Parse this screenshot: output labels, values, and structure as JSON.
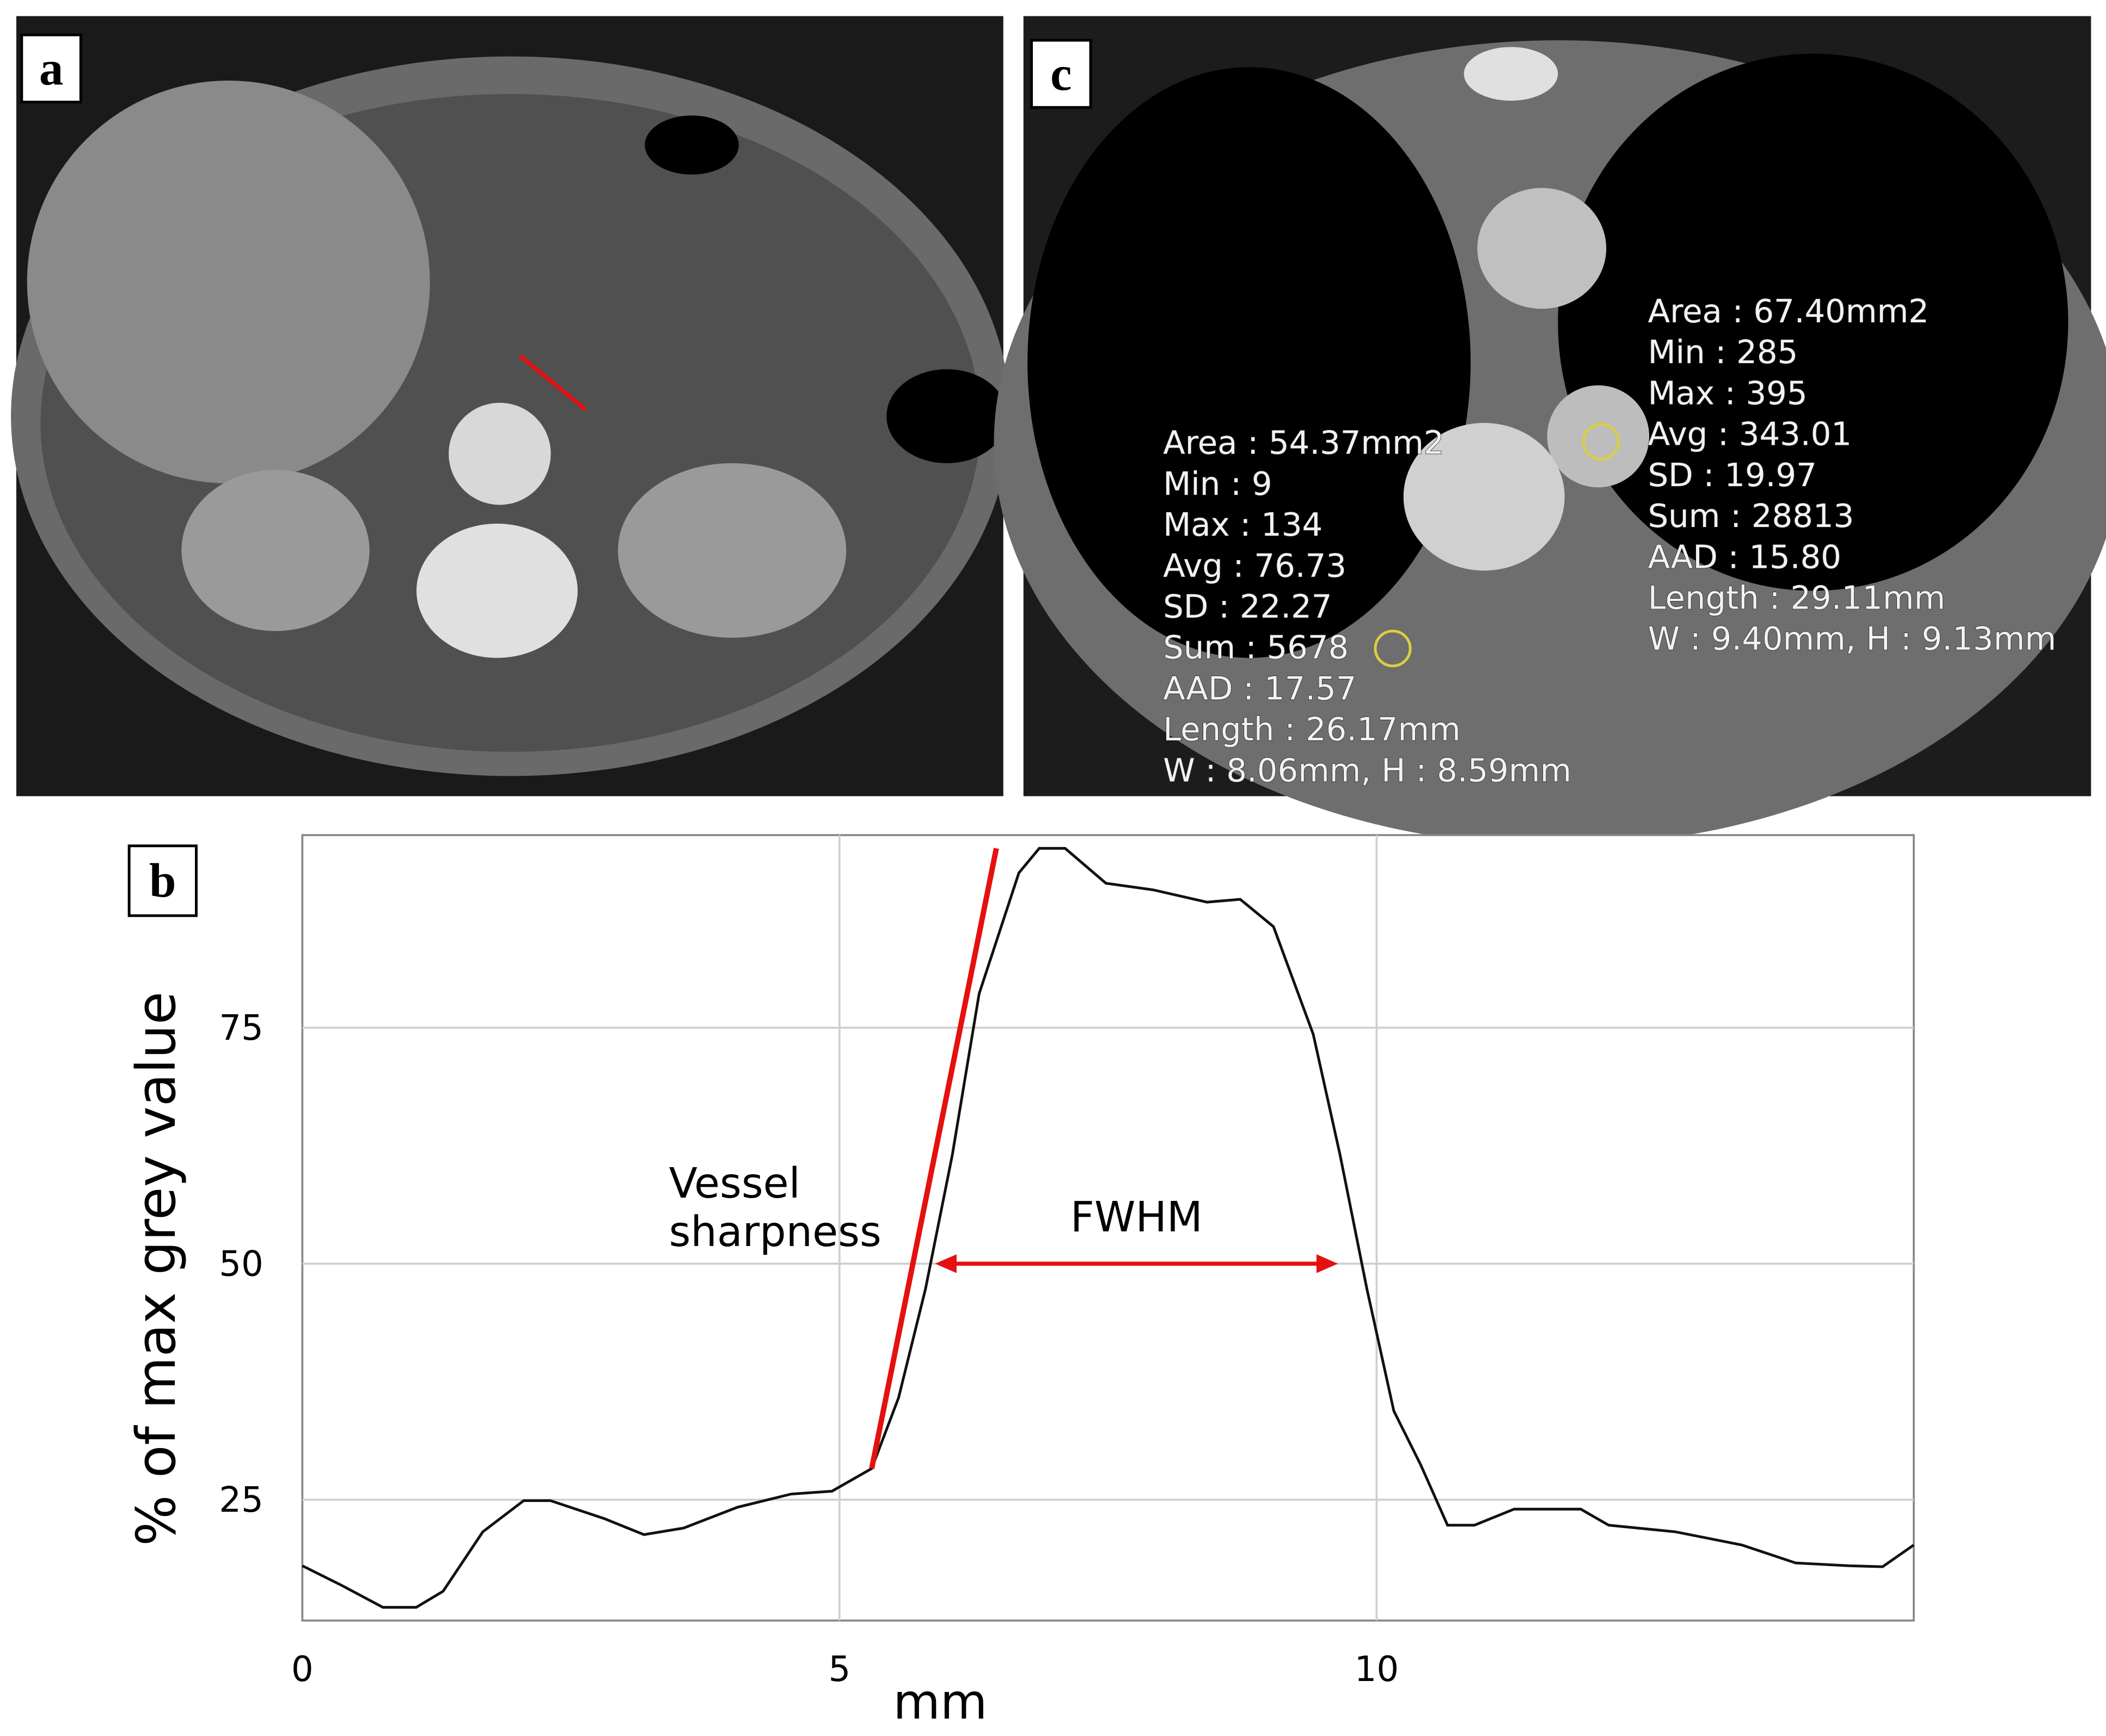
{
  "panels": {
    "a": {
      "label": "a"
    },
    "c": {
      "label": "c",
      "left_measurement": [
        "Area : 54.37mm2",
        "Min : 9",
        "Max : 134",
        "Avg : 76.73",
        "SD : 22.27",
        "Sum : 5678",
        "AAD : 17.57",
        "Length : 26.17mm",
        "W : 8.06mm, H : 8.59mm"
      ],
      "right_measurement": [
        "Area : 67.40mm2",
        "Min : 285",
        "Max : 395",
        "Avg : 343.01",
        "SD : 19.97",
        "Sum : 28813",
        "AAD : 15.80",
        "Length : 29.11mm",
        "W : 9.40mm, H : 9.13mm"
      ]
    }
  },
  "chart_data": {
    "type": "line",
    "panel_label": "b",
    "xlabel": "mm",
    "ylabel": "% of max grey value",
    "x": [
      0,
      0.37,
      0.75,
      1.06,
      1.31,
      1.68,
      2.06,
      2.31,
      2.81,
      3.18,
      3.55,
      4.05,
      4.55,
      4.93,
      5.3,
      5.55,
      5.8,
      6.05,
      6.3,
      6.67,
      6.86,
      7.1,
      7.48,
      7.92,
      8.42,
      8.73,
      9.04,
      9.41,
      9.66,
      9.91,
      10.16,
      10.41,
      10.66,
      10.91,
      11.28,
      11.9,
      12.16,
      12.78,
      13.4,
      13.9,
      14.4,
      14.71,
      15
    ],
    "values": [
      18.0,
      15.9,
      13.6,
      13.6,
      15.3,
      21.6,
      24.9,
      24.9,
      23.0,
      21.3,
      22.0,
      24.2,
      25.6,
      25.9,
      28.3,
      35.8,
      47.3,
      61.5,
      78.6,
      91.4,
      94.0,
      94.0,
      90.3,
      89.6,
      88.3,
      88.6,
      85.7,
      74.3,
      61.5,
      47.3,
      34.4,
      28.7,
      22.3,
      22.3,
      24.0,
      24.0,
      22.3,
      21.6,
      20.2,
      18.3,
      18.0,
      17.9,
      20.2
    ],
    "color": "#111111",
    "xlim": [
      0,
      15
    ],
    "ylim": [
      12.2,
      95.4
    ],
    "xticks": [
      0,
      5,
      10
    ],
    "yticks": [
      25,
      50,
      75
    ],
    "grid": true,
    "sharpness_line": {
      "label_lines": [
        "Vessel",
        "sharpness"
      ],
      "x": [
        5.3,
        6.46
      ],
      "y": [
        28.3,
        94.0
      ],
      "color": "#e51010"
    },
    "fwhm_arrow": {
      "label": "FWHM",
      "x": [
        5.89,
        9.64
      ],
      "y": 50,
      "color": "#e51010"
    }
  }
}
